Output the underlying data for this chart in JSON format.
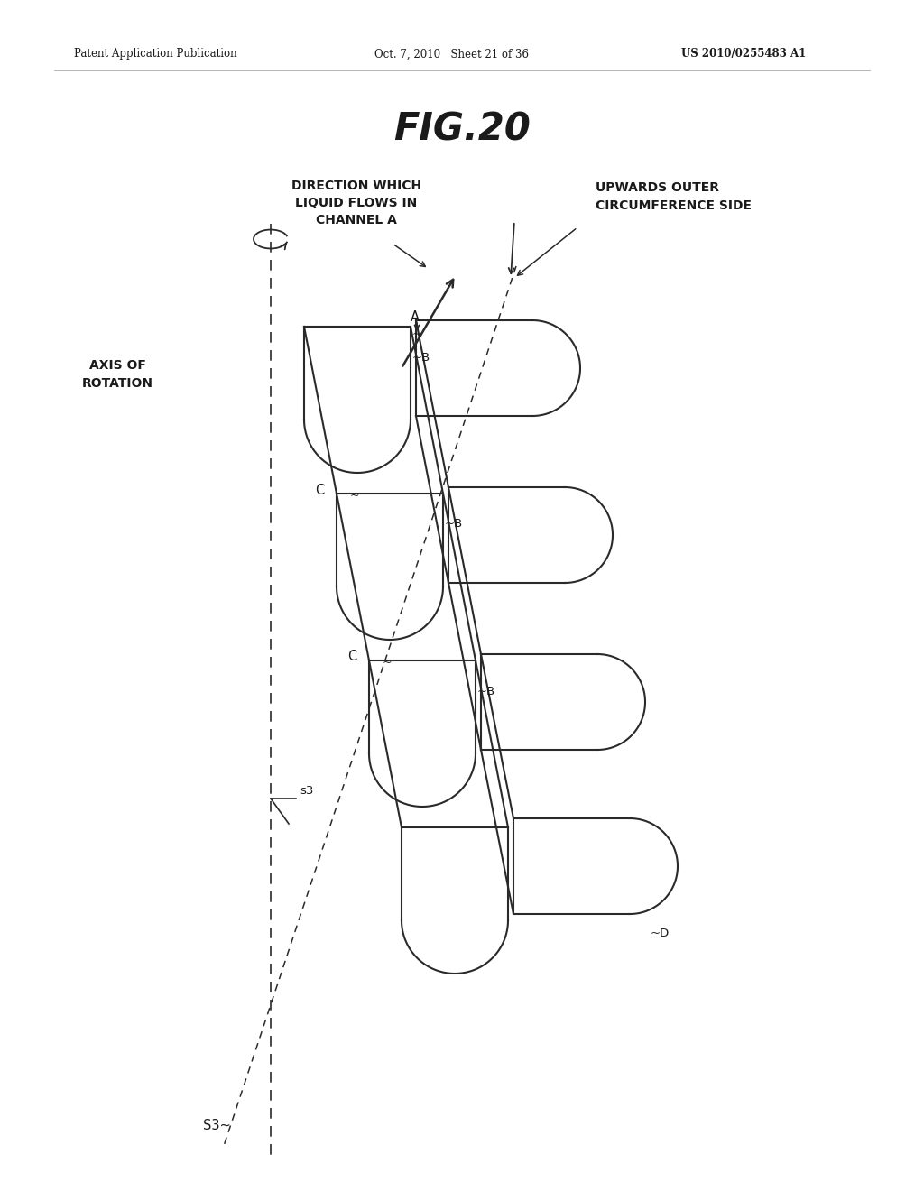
{
  "title": "FIG.20",
  "header_left": "Patent Application Publication",
  "header_mid": "Oct. 7, 2010   Sheet 21 of 36",
  "header_right": "US 2010/0255483 A1",
  "bg_color": "#ffffff",
  "lc": "#2a2a2a",
  "tc": "#1a1a1a",
  "label_axis": "AXIS OF\nROTATION",
  "label_dir": "DIRECTION WHICH\nLIQUID FLOWS IN\nCHANNEL A",
  "label_upward": "UPWARDS OUTER\nCIRCUMFERENCE SIDE",
  "label_s3": "s3",
  "label_S3": "S3"
}
